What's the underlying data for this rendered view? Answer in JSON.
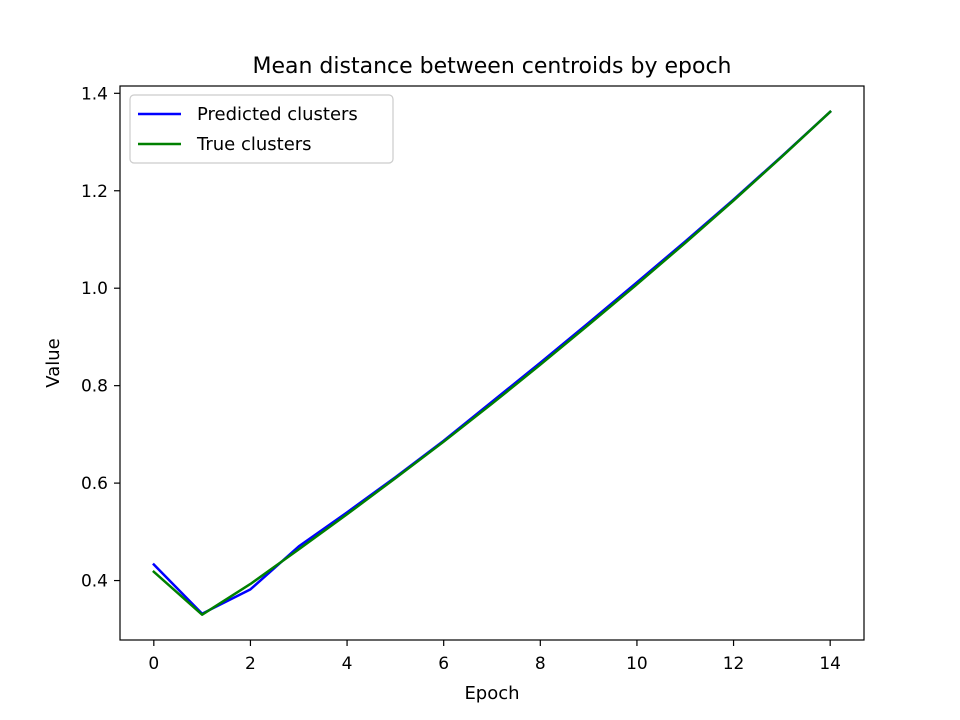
{
  "chart_data": {
    "type": "line",
    "title": "Mean distance between centroids by epoch",
    "xlabel": "Epoch",
    "ylabel": "Value",
    "x": [
      0,
      1,
      2,
      3,
      4,
      5,
      6,
      7,
      8,
      9,
      10,
      11,
      12,
      13,
      14
    ],
    "xlim": [
      -0.7,
      14.7
    ],
    "ylim": [
      0.278,
      1.415
    ],
    "xticks": [
      0,
      2,
      4,
      6,
      8,
      10,
      12,
      14
    ],
    "yticks": [
      0.4,
      0.6,
      0.8,
      1.0,
      1.2,
      1.4
    ],
    "xtick_labels": [
      "0",
      "2",
      "4",
      "6",
      "8",
      "10",
      "12",
      "14"
    ],
    "ytick_labels": [
      "0.4",
      "0.6",
      "0.8",
      "1.0",
      "1.2",
      "1.4"
    ],
    "grid": false,
    "legend_position": "top-left",
    "series": [
      {
        "name": "Predicted clusters",
        "color": "#0000ff",
        "values": [
          0.433,
          0.332,
          0.382,
          0.47,
          0.54,
          0.612,
          0.687,
          0.767,
          0.847,
          0.929,
          1.012,
          1.096,
          1.182,
          1.271,
          1.362
        ]
      },
      {
        "name": "True clusters",
        "color": "#008000",
        "values": [
          0.418,
          0.33,
          0.393,
          0.464,
          0.536,
          0.61,
          0.685,
          0.763,
          0.843,
          0.925,
          1.008,
          1.093,
          1.18,
          1.27,
          1.362
        ]
      }
    ]
  }
}
